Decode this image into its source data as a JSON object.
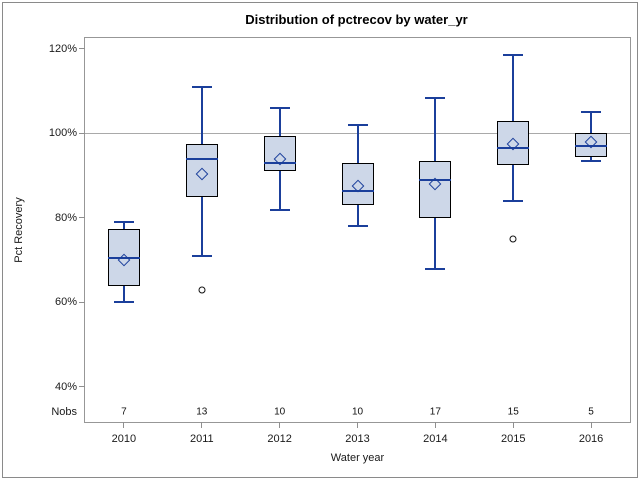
{
  "title": "Distribution of pctrecov by water_yr",
  "y_axis": {
    "label": "Pct Recovery"
  },
  "x_axis": {
    "label": "Water year"
  },
  "nobs_label": "Nobs",
  "colors": {
    "box_fill": "#cdd7e8",
    "box_border": "#000000",
    "line_blue": "#1b3f9b",
    "reference_line": "#a9a9a9",
    "plot_border": "#979797",
    "outlier_border": "#111111"
  },
  "chart_data": {
    "type": "boxplot",
    "title": "Distribution of pctrecov by water_yr",
    "xlabel": "Water year",
    "ylabel": "Pct Recovery",
    "ylim": [
      31.7,
      122.6
    ],
    "yticks_pct": [
      120,
      100,
      80,
      60,
      40
    ],
    "reference_line": 100,
    "grid": false,
    "categories": [
      "2010",
      "2011",
      "2012",
      "2013",
      "2014",
      "2015",
      "2016"
    ],
    "nobs": [
      7,
      13,
      10,
      10,
      17,
      15,
      5
    ],
    "series": [
      {
        "category": "2010",
        "whisker_low": 60,
        "q1": 64,
        "median": 70.5,
        "q3": 77.5,
        "whisker_high": 79,
        "mean": 70,
        "outliers": []
      },
      {
        "category": "2011",
        "whisker_low": 71,
        "q1": 85,
        "median": 94,
        "q3": 97.5,
        "whisker_high": 111,
        "mean": 90.5,
        "outliers": [
          63
        ]
      },
      {
        "category": "2012",
        "whisker_low": 82,
        "q1": 91,
        "median": 93,
        "q3": 99.5,
        "whisker_high": 106,
        "mean": 94,
        "outliers": []
      },
      {
        "category": "2013",
        "whisker_low": 78,
        "q1": 83,
        "median": 86.5,
        "q3": 93,
        "whisker_high": 102,
        "mean": 87.5,
        "outliers": []
      },
      {
        "category": "2014",
        "whisker_low": 68,
        "q1": 80,
        "median": 89,
        "q3": 93.5,
        "whisker_high": 108.5,
        "mean": 88,
        "outliers": []
      },
      {
        "category": "2015",
        "whisker_low": 84,
        "q1": 92.5,
        "median": 96.5,
        "q3": 103,
        "whisker_high": 118.5,
        "mean": 97.5,
        "outliers": [
          75
        ]
      },
      {
        "category": "2016",
        "whisker_low": 93.5,
        "q1": 94.5,
        "median": 97,
        "q3": 100,
        "whisker_high": 105,
        "mean": 98,
        "outliers": []
      }
    ]
  }
}
